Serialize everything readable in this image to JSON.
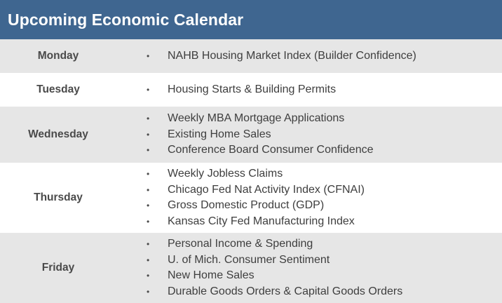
{
  "header": {
    "title": "Upcoming Economic Calendar"
  },
  "colors": {
    "header_bg": "#3f6690",
    "row_shaded": "#e6e6e6",
    "row_plain": "#ffffff"
  },
  "days": [
    {
      "day": "Monday",
      "events": [
        "NAHB Housing Market Index (Builder Confidence)"
      ]
    },
    {
      "day": "Tuesday",
      "events": [
        "Housing Starts & Building Permits"
      ]
    },
    {
      "day": "Wednesday",
      "events": [
        "Weekly MBA Mortgage Applications",
        "Existing Home Sales",
        "Conference Board Consumer Confidence"
      ]
    },
    {
      "day": "Thursday",
      "events": [
        "Weekly Jobless Claims",
        "Chicago Fed Nat Activity Index (CFNAI)",
        "Gross Domestic Product (GDP)",
        "Kansas City Fed Manufacturing Index"
      ]
    },
    {
      "day": "Friday",
      "events": [
        "Personal Income & Spending",
        "U. of Mich. Consumer Sentiment",
        "New Home Sales",
        "Durable Goods Orders & Capital Goods Orders"
      ]
    }
  ],
  "bullet_symbol": "•"
}
